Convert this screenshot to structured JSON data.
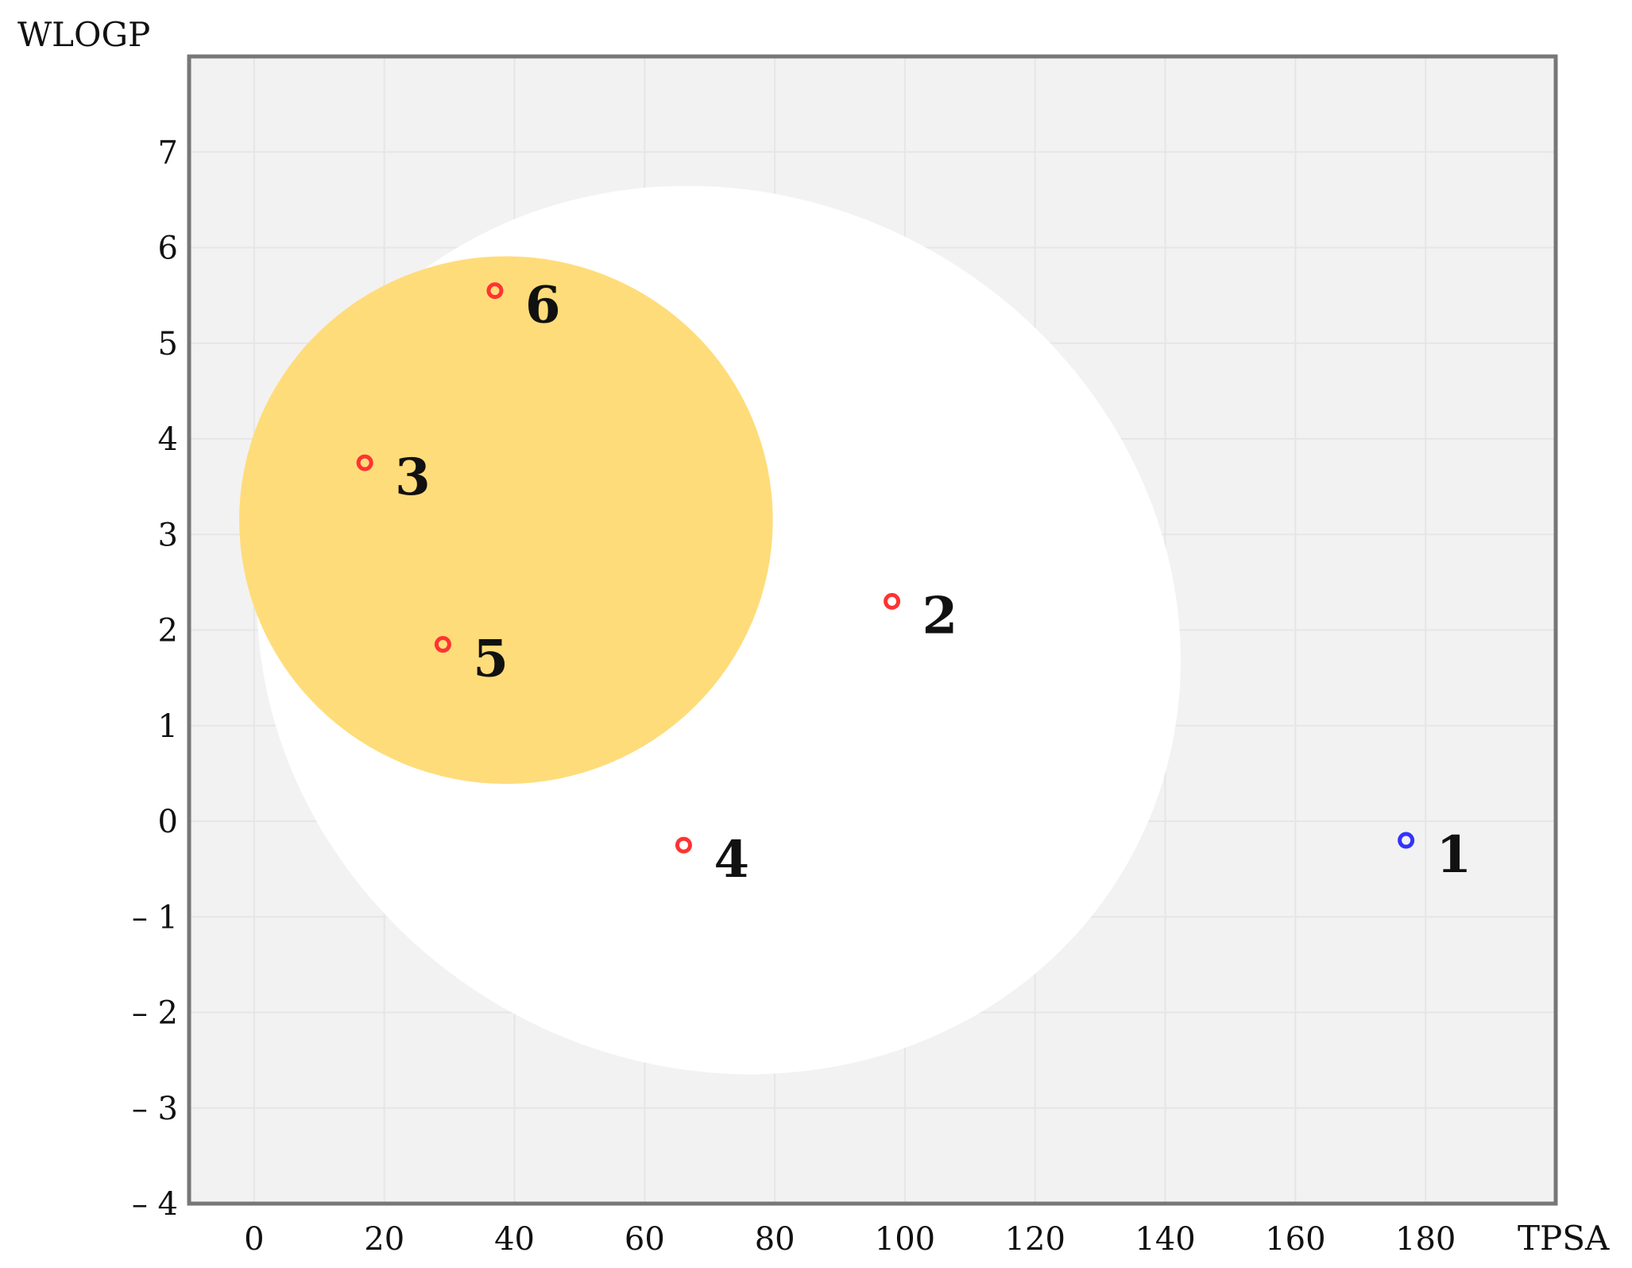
{
  "chart_data": {
    "type": "scatter",
    "title": "",
    "xlabel": "TPSA",
    "ylabel": "WLOGP",
    "xlim": [
      -10,
      200
    ],
    "ylim": [
      -4,
      8
    ],
    "x_ticks": [
      0,
      20,
      40,
      60,
      80,
      100,
      120,
      140,
      160,
      180
    ],
    "y_ticks": [
      -4,
      -3,
      -2,
      -1,
      0,
      1,
      2,
      3,
      4,
      5,
      6,
      7
    ],
    "y_tick_labels": [
      "– 4",
      "– 3",
      "– 2",
      "– 1",
      "0",
      "1",
      "2",
      "3",
      "4",
      "5",
      "6",
      "7"
    ],
    "grid": true,
    "regions": [
      {
        "name": "white",
        "color": "#ffffff",
        "shape": "ellipse",
        "center": [
          71.4,
          2.0
        ],
        "radius_x": 72.3,
        "radius_y": 4.55,
        "rotation_deg": 30
      },
      {
        "name": "yolk",
        "color": "#ffdc7a",
        "shape": "ellipse",
        "center": [
          38.7,
          3.15
        ],
        "radius_x": 41,
        "radius_y": 2.76,
        "rotation_deg": 0
      }
    ],
    "points": [
      {
        "label": "1",
        "x": 177,
        "y": -0.2,
        "color": "#3333ff"
      },
      {
        "label": "2",
        "x": 98,
        "y": 2.3,
        "color": "#ff3333"
      },
      {
        "label": "3",
        "x": 17,
        "y": 3.75,
        "color": "#ff3333"
      },
      {
        "label": "4",
        "x": 66,
        "y": -0.25,
        "color": "#ff3333"
      },
      {
        "label": "5",
        "x": 29,
        "y": 1.85,
        "color": "#ff3333"
      },
      {
        "label": "6",
        "x": 37,
        "y": 5.55,
        "color": "#ff3333"
      }
    ],
    "colors": {
      "plot_background": "#f2f2f2",
      "frame": "#777777"
    }
  }
}
